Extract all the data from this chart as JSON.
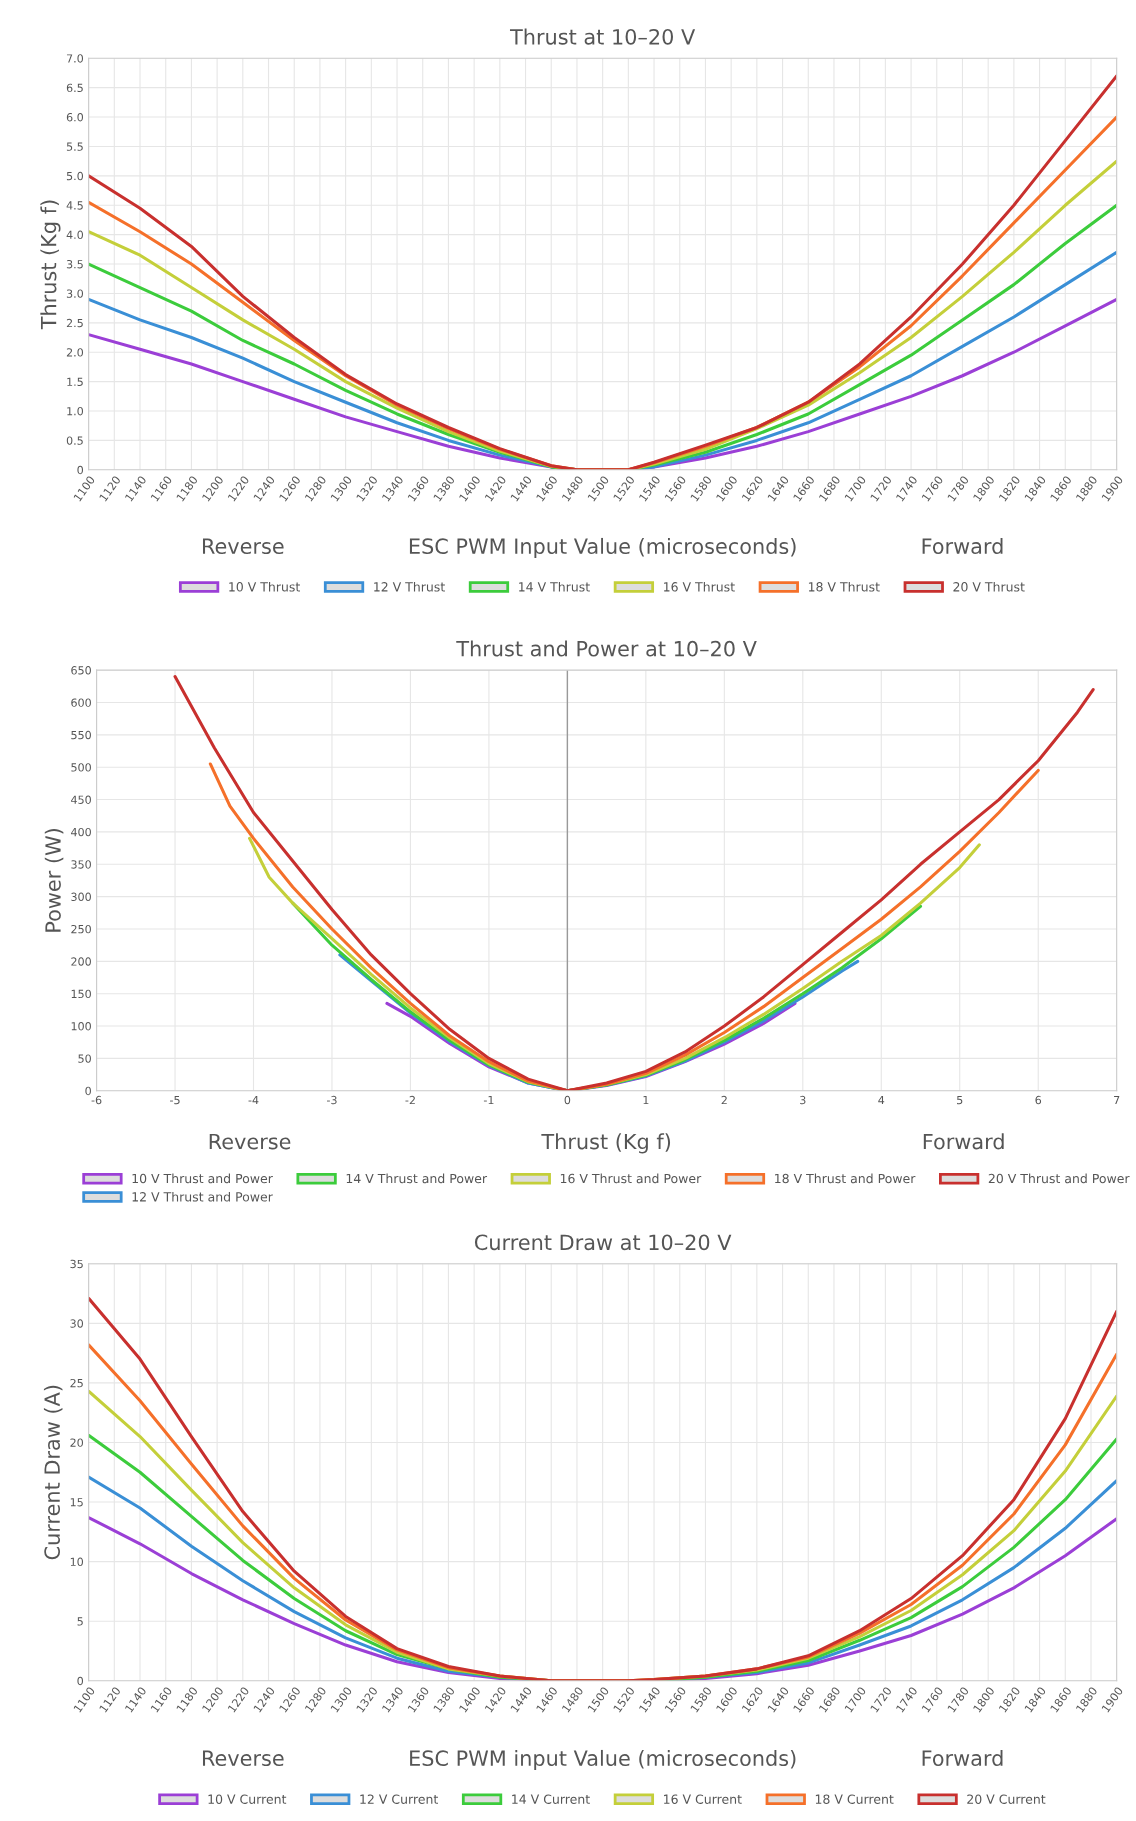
{
  "chart_data": [
    {
      "type": "line",
      "title": "Thrust at 10–20 V",
      "xlabel": "ESC PWM Input Value (microseconds)",
      "ylabel": "Thrust (Kg f)",
      "annotations": [
        "Reverse",
        "Forward"
      ],
      "x": [
        1100,
        1140,
        1180,
        1220,
        1260,
        1300,
        1340,
        1380,
        1420,
        1460,
        1480,
        1520,
        1540,
        1580,
        1620,
        1660,
        1700,
        1740,
        1780,
        1820,
        1860,
        1900
      ],
      "xlim": [
        1100,
        1900
      ],
      "xticks": [
        1100,
        1120,
        1140,
        1160,
        1180,
        1200,
        1220,
        1240,
        1260,
        1280,
        1300,
        1320,
        1340,
        1360,
        1380,
        1400,
        1420,
        1440,
        1460,
        1480,
        1500,
        1520,
        1540,
        1560,
        1580,
        1600,
        1620,
        1640,
        1660,
        1680,
        1700,
        1720,
        1740,
        1760,
        1780,
        1800,
        1820,
        1840,
        1860,
        1880,
        1900
      ],
      "ylim": [
        0,
        7
      ],
      "yticks": [
        0,
        0.5,
        {
          "value": 1,
          "label": "1.0"
        },
        1.5,
        {
          "value": 2,
          "label": "2.0"
        },
        2.5,
        {
          "value": 3,
          "label": "3.0"
        },
        3.5,
        {
          "value": 4,
          "label": "4.0"
        },
        4.5,
        {
          "value": 5,
          "label": "5.0"
        },
        5.5,
        {
          "value": 6,
          "label": "6.0"
        },
        6.5,
        {
          "value": 7,
          "label": "7.0"
        }
      ],
      "grid": true,
      "legend": "bottom",
      "series": [
        {
          "name": "10 V Thrust",
          "color": "#9b3fd6",
          "values": [
            2.3,
            2.05,
            1.8,
            1.5,
            1.2,
            0.9,
            0.65,
            0.4,
            0.2,
            0.05,
            0,
            0,
            0.05,
            0.2,
            0.4,
            0.65,
            0.95,
            1.25,
            1.6,
            2.0,
            2.45,
            2.9
          ]
        },
        {
          "name": "12 V Thrust",
          "color": "#3a8fd6",
          "values": [
            2.9,
            2.55,
            2.25,
            1.9,
            1.5,
            1.15,
            0.8,
            0.5,
            0.25,
            0.05,
            0,
            0,
            0.05,
            0.25,
            0.5,
            0.8,
            1.2,
            1.6,
            2.1,
            2.6,
            3.15,
            3.7
          ]
        },
        {
          "name": "14 V Thrust",
          "color": "#3ccc3c",
          "values": [
            3.5,
            3.1,
            2.7,
            2.2,
            1.8,
            1.35,
            0.95,
            0.6,
            0.3,
            0.05,
            0,
            0,
            0.08,
            0.3,
            0.6,
            0.95,
            1.45,
            1.95,
            2.55,
            3.15,
            3.85,
            4.5
          ]
        },
        {
          "name": "16 V Thrust",
          "color": "#c4cf3a",
          "values": [
            4.05,
            3.65,
            3.1,
            2.55,
            2.05,
            1.5,
            1.05,
            0.65,
            0.32,
            0.06,
            0,
            0,
            0.1,
            0.35,
            0.7,
            1.1,
            1.65,
            2.25,
            2.95,
            3.7,
            4.5,
            5.25
          ]
        },
        {
          "name": "18 V Thrust",
          "color": "#f5702a",
          "values": [
            4.55,
            4.05,
            3.5,
            2.85,
            2.2,
            1.6,
            1.1,
            0.7,
            0.35,
            0.07,
            0,
            0,
            0.12,
            0.4,
            0.72,
            1.15,
            1.75,
            2.45,
            3.3,
            4.2,
            5.1,
            6.0
          ]
        },
        {
          "name": "20 V Thrust",
          "color": "#c8302e",
          "values": [
            5.0,
            4.45,
            3.8,
            2.95,
            2.25,
            1.62,
            1.12,
            0.72,
            0.36,
            0.07,
            0,
            0,
            0.13,
            0.42,
            0.72,
            1.15,
            1.8,
            2.6,
            3.5,
            4.5,
            5.6,
            6.7
          ]
        }
      ]
    },
    {
      "type": "line",
      "title": "Thrust and Power at 10–20 V",
      "xlabel": "Thrust (Kg f)",
      "ylabel": "Power (W)",
      "annotations": [
        "Reverse",
        "Forward"
      ],
      "xlim": [
        -6,
        7
      ],
      "xticks": [
        -6,
        -5,
        -4,
        -3,
        -2,
        -1,
        0,
        1,
        2,
        3,
        4,
        5,
        6,
        7
      ],
      "ylim": [
        0,
        650
      ],
      "yticks": [
        0,
        50,
        100,
        150,
        200,
        250,
        300,
        350,
        400,
        450,
        500,
        550,
        600,
        650
      ],
      "grid": true,
      "legend": "bottom",
      "ref_lines": [
        {
          "axis": "x",
          "value": 0,
          "color": "#999999"
        }
      ],
      "series": [
        {
          "name": "10 V Thrust and Power",
          "color": "#9b3fd6",
          "x": [
            -2.3,
            -2,
            -1.5,
            -1,
            -0.5,
            0,
            0.5,
            1,
            1.5,
            2,
            2.5,
            2.9
          ],
          "values": [
            135,
            115,
            73,
            37,
            12,
            0,
            8,
            22,
            45,
            72,
            104,
            135
          ]
        },
        {
          "name": "12 V Thrust and Power",
          "color": "#3a8fd6",
          "x": [
            -2.9,
            -2.5,
            -2,
            -1.5,
            -1,
            -0.5,
            0,
            0.5,
            1,
            1.5,
            2,
            2.5,
            3,
            3.5,
            3.7
          ],
          "values": [
            210,
            170,
            120,
            76,
            39,
            12,
            0,
            9,
            23,
            46,
            75,
            108,
            145,
            185,
            200
          ]
        },
        {
          "name": "14 V Thrust and Power",
          "color": "#3ccc3c",
          "x": [
            -3.5,
            -3,
            -2.5,
            -2,
            -1.5,
            -1,
            -0.5,
            0,
            0.5,
            1,
            1.5,
            2,
            2.5,
            3,
            3.5,
            4,
            4.5
          ],
          "values": [
            290,
            225,
            172,
            122,
            78,
            40,
            13,
            0,
            9,
            24,
            48,
            78,
            112,
            150,
            190,
            235,
            285
          ]
        },
        {
          "name": "16 V Thrust and Power",
          "color": "#c4cf3a",
          "x": [
            -4.05,
            -3.8,
            -3.5,
            -3,
            -2.5,
            -2,
            -1.5,
            -1,
            -0.5,
            0,
            0.5,
            1,
            1.5,
            2,
            2.5,
            3,
            3.5,
            4,
            4.5,
            5,
            5.25
          ],
          "values": [
            390,
            330,
            290,
            235,
            180,
            128,
            82,
            42,
            14,
            0,
            10,
            25,
            50,
            82,
            118,
            158,
            200,
            240,
            290,
            345,
            380
          ]
        },
        {
          "name": "18 V Thrust and Power",
          "color": "#f5702a",
          "x": [
            -4.55,
            -4.3,
            -4,
            -3.5,
            -3,
            -2.5,
            -2,
            -1.5,
            -1,
            -0.5,
            0,
            0.5,
            1,
            1.5,
            2,
            2.5,
            3,
            3.5,
            4,
            4.5,
            5,
            5.5,
            6
          ],
          "values": [
            505,
            440,
            390,
            315,
            250,
            190,
            135,
            85,
            45,
            15,
            0,
            10,
            27,
            55,
            90,
            130,
            175,
            220,
            265,
            315,
            370,
            430,
            495
          ]
        },
        {
          "name": "20 V Thrust and Power",
          "color": "#c8302e",
          "x": [
            -5,
            -4.5,
            -4,
            -3.5,
            -3,
            -2.5,
            -2,
            -1.5,
            -1,
            -0.5,
            0,
            0.5,
            1,
            1.5,
            2,
            2.5,
            3,
            3.5,
            4,
            4.5,
            5,
            5.5,
            6,
            6.5,
            6.7
          ],
          "values": [
            640,
            530,
            430,
            355,
            280,
            210,
            150,
            95,
            50,
            18,
            0,
            12,
            30,
            60,
            100,
            145,
            195,
            245,
            295,
            350,
            400,
            450,
            510,
            585,
            620
          ]
        }
      ]
    },
    {
      "type": "line",
      "title": "Current Draw at 10–20 V",
      "xlabel": "ESC PWM input Value (microseconds)",
      "ylabel": "Current Draw (A)",
      "annotations": [
        "Reverse",
        "Forward"
      ],
      "x": [
        1100,
        1140,
        1180,
        1220,
        1260,
        1300,
        1340,
        1380,
        1420,
        1460,
        1480,
        1520,
        1540,
        1580,
        1620,
        1660,
        1700,
        1740,
        1780,
        1820,
        1860,
        1900
      ],
      "xlim": [
        1100,
        1900
      ],
      "xticks": [
        1100,
        1120,
        1140,
        1160,
        1180,
        1200,
        1220,
        1240,
        1260,
        1280,
        1300,
        1320,
        1340,
        1360,
        1380,
        1400,
        1420,
        1440,
        1460,
        1480,
        1500,
        1520,
        1540,
        1560,
        1580,
        1600,
        1620,
        1640,
        1660,
        1680,
        1700,
        1720,
        1740,
        1760,
        1780,
        1800,
        1820,
        1840,
        1860,
        1880,
        1900
      ],
      "ylim": [
        0,
        35
      ],
      "yticks": [
        0,
        5,
        10,
        15,
        20,
        25,
        30,
        35
      ],
      "grid": true,
      "legend": "bottom",
      "series": [
        {
          "name": "10 V Current",
          "color": "#9b3fd6",
          "values": [
            13.7,
            11.5,
            9.0,
            6.8,
            4.8,
            3.0,
            1.6,
            0.7,
            0.2,
            0,
            0,
            0,
            0,
            0.2,
            0.6,
            1.3,
            2.5,
            3.8,
            5.6,
            7.8,
            10.5,
            13.6
          ]
        },
        {
          "name": "12 V Current",
          "color": "#3a8fd6",
          "values": [
            17.1,
            14.5,
            11.3,
            8.4,
            5.8,
            3.6,
            1.9,
            0.8,
            0.3,
            0,
            0,
            0,
            0,
            0.3,
            0.7,
            1.5,
            3.0,
            4.6,
            6.8,
            9.5,
            12.8,
            16.8
          ]
        },
        {
          "name": "14 V Current",
          "color": "#3ccc3c",
          "values": [
            20.6,
            17.5,
            13.8,
            10.1,
            6.9,
            4.2,
            2.2,
            1.0,
            0.3,
            0,
            0,
            0,
            0,
            0.3,
            0.8,
            1.7,
            3.4,
            5.3,
            7.9,
            11.2,
            15.2,
            20.3
          ]
        },
        {
          "name": "16 V Current",
          "color": "#c4cf3a",
          "values": [
            24.3,
            20.5,
            16.0,
            11.6,
            7.8,
            4.7,
            2.4,
            1.0,
            0.4,
            0,
            0,
            0,
            0.1,
            0.4,
            0.9,
            1.9,
            3.7,
            5.9,
            8.9,
            12.6,
            17.6,
            23.9
          ]
        },
        {
          "name": "18 V Current",
          "color": "#f5702a",
          "values": [
            28.2,
            23.5,
            18.2,
            13.0,
            8.6,
            5.1,
            2.6,
            1.1,
            0.4,
            0,
            0,
            0,
            0.1,
            0.4,
            1.0,
            2.0,
            4.0,
            6.4,
            9.7,
            14.0,
            19.8,
            27.4
          ]
        },
        {
          "name": "20 V Current",
          "color": "#c8302e",
          "values": [
            32.1,
            27.0,
            20.5,
            14.2,
            9.2,
            5.4,
            2.7,
            1.2,
            0.4,
            0,
            0,
            0,
            0.1,
            0.4,
            1.0,
            2.1,
            4.2,
            6.9,
            10.5,
            15.2,
            22.0,
            31.0
          ]
        }
      ]
    }
  ]
}
